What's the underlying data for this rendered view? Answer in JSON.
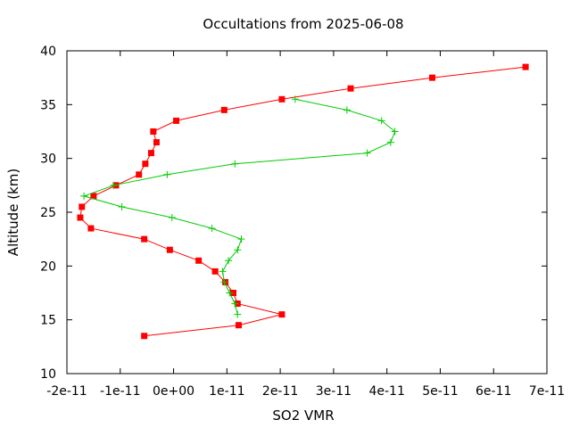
{
  "chart_data": {
    "type": "line",
    "title": "Occultations from 2025-06-08",
    "xlabel": "SO2 VMR",
    "ylabel": "Altitude (km)",
    "xlim": [
      -2e-11,
      7e-11
    ],
    "ylim": [
      10,
      40
    ],
    "grid": false,
    "legend": "none",
    "x_ticks": [
      {
        "value": -2e-11,
        "label": "-2e-11"
      },
      {
        "value": -1e-11,
        "label": "-1e-11"
      },
      {
        "value": 0,
        "label": "0e+00"
      },
      {
        "value": 1e-11,
        "label": "1e-11"
      },
      {
        "value": 2e-11,
        "label": "2e-11"
      },
      {
        "value": 3e-11,
        "label": "3e-11"
      },
      {
        "value": 4e-11,
        "label": "4e-11"
      },
      {
        "value": 5e-11,
        "label": "5e-11"
      },
      {
        "value": 6e-11,
        "label": "6e-11"
      },
      {
        "value": 7e-11,
        "label": "7e-11"
      }
    ],
    "y_ticks": [
      {
        "value": 10,
        "label": "10"
      },
      {
        "value": 15,
        "label": "15"
      },
      {
        "value": 20,
        "label": "20"
      },
      {
        "value": 25,
        "label": "25"
      },
      {
        "value": 30,
        "label": "30"
      },
      {
        "value": 35,
        "label": "35"
      },
      {
        "value": 40,
        "label": "40"
      }
    ],
    "series": [
      {
        "color": "#ff0000",
        "marker": "square",
        "points": [
          {
            "x": -5.5e-12,
            "y": 13.5
          },
          {
            "x": 1.22e-11,
            "y": 14.5
          },
          {
            "x": 2.03e-11,
            "y": 15.5
          },
          {
            "x": 1.2e-11,
            "y": 16.5
          },
          {
            "x": 1.12e-11,
            "y": 17.5
          },
          {
            "x": 9.7e-12,
            "y": 18.5
          },
          {
            "x": 7.8e-12,
            "y": 19.5
          },
          {
            "x": 4.7e-12,
            "y": 20.5
          },
          {
            "x": -7e-13,
            "y": 21.5
          },
          {
            "x": -5.5e-12,
            "y": 22.5
          },
          {
            "x": -1.55e-11,
            "y": 23.5
          },
          {
            "x": -1.75e-11,
            "y": 24.5
          },
          {
            "x": -1.72e-11,
            "y": 25.5
          },
          {
            "x": -1.5e-11,
            "y": 26.5
          },
          {
            "x": -1.08e-11,
            "y": 27.5
          },
          {
            "x": -6.5e-12,
            "y": 28.5
          },
          {
            "x": -5.3e-12,
            "y": 29.5
          },
          {
            "x": -4.2e-12,
            "y": 30.5
          },
          {
            "x": -3.2e-12,
            "y": 31.5
          },
          {
            "x": -3.8e-12,
            "y": 32.5
          },
          {
            "x": 5e-13,
            "y": 33.5
          },
          {
            "x": 9.5e-12,
            "y": 34.5
          },
          {
            "x": 2.03e-11,
            "y": 35.5
          },
          {
            "x": 3.32e-11,
            "y": 36.5
          },
          {
            "x": 4.85e-11,
            "y": 37.5
          },
          {
            "x": 6.6e-11,
            "y": 38.5
          }
        ]
      },
      {
        "color": "#00cc00",
        "marker": "plus",
        "points": [
          {
            "x": 1.2e-11,
            "y": 15.5
          },
          {
            "x": 1.15e-11,
            "y": 16.5
          },
          {
            "x": 1.05e-11,
            "y": 17.5
          },
          {
            "x": 9.5e-12,
            "y": 18.5
          },
          {
            "x": 9.2e-12,
            "y": 19.5
          },
          {
            "x": 1.03e-11,
            "y": 20.5
          },
          {
            "x": 1.2e-11,
            "y": 21.5
          },
          {
            "x": 1.27e-11,
            "y": 22.5
          },
          {
            "x": 7.2e-12,
            "y": 23.5
          },
          {
            "x": -3e-13,
            "y": 24.5
          },
          {
            "x": -9.7e-12,
            "y": 25.5
          },
          {
            "x": -1.68e-11,
            "y": 26.5
          },
          {
            "x": -1.12e-11,
            "y": 27.5
          },
          {
            "x": -1.2e-12,
            "y": 28.5
          },
          {
            "x": 1.15e-11,
            "y": 29.5
          },
          {
            "x": 3.63e-11,
            "y": 30.5
          },
          {
            "x": 4.07e-11,
            "y": 31.5
          },
          {
            "x": 4.15e-11,
            "y": 32.5
          },
          {
            "x": 3.9e-11,
            "y": 33.5
          },
          {
            "x": 3.25e-11,
            "y": 34.5
          },
          {
            "x": 2.28e-11,
            "y": 35.5
          }
        ]
      }
    ]
  }
}
